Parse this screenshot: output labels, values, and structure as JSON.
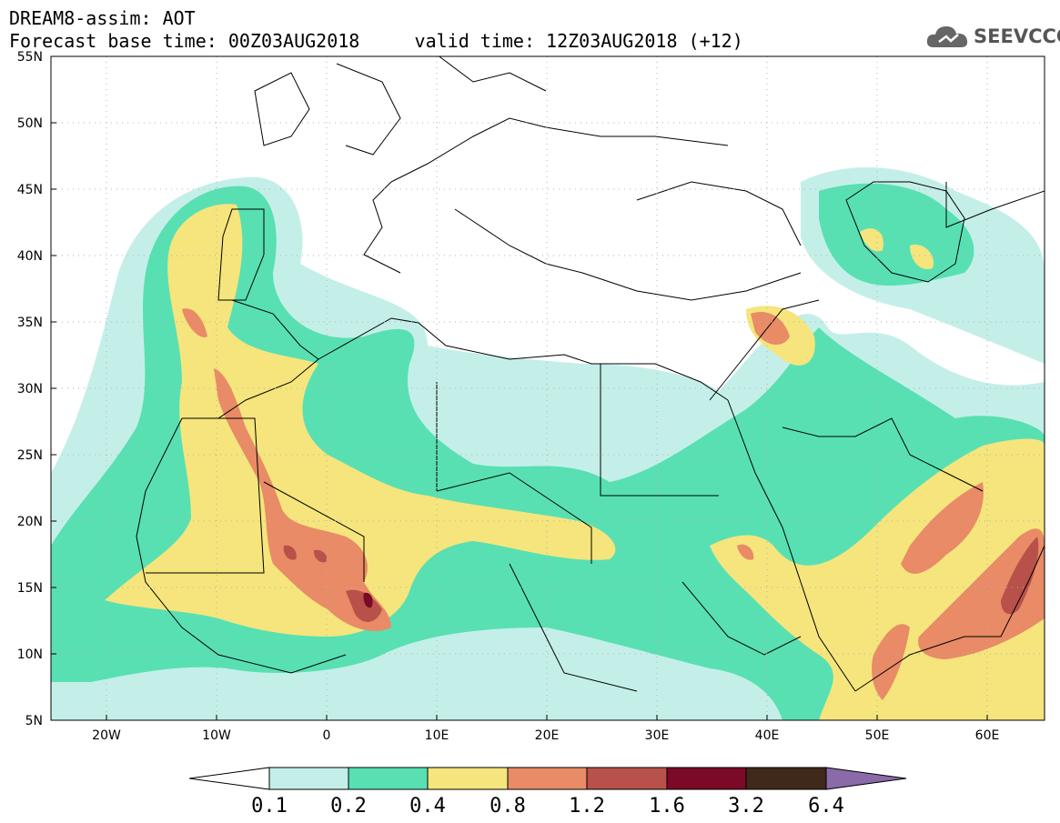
{
  "header": {
    "title": "DREAM8-assim: AOT",
    "base_label": "Forecast base time: 00Z03AUG2018",
    "valid_label": "valid time: 12Z03AUG2018 (+12)"
  },
  "logo": {
    "text": "SEEVCCC",
    "icon": "cloud-icon"
  },
  "map": {
    "lat_labels": [
      "55N",
      "50N",
      "45N",
      "40N",
      "35N",
      "30N",
      "25N",
      "20N",
      "15N",
      "10N",
      "5N"
    ],
    "lon_labels": [
      "20W",
      "10W",
      "0",
      "10E",
      "20E",
      "30E",
      "40E",
      "50E",
      "60E"
    ],
    "lon_range": [
      -25,
      65
    ],
    "lat_range": [
      5,
      55
    ],
    "grid": "dotted"
  },
  "colorbar": {
    "labels": [
      "0.1",
      "0.2",
      "0.4",
      "0.8",
      "1.2",
      "1.6",
      "3.2",
      "6.4"
    ],
    "colors": [
      "#ffffff",
      "#c4efe9",
      "#58e0b3",
      "#f5e57c",
      "#e88b66",
      "#b8514a",
      "#7a0a25",
      "#40281a",
      "#8a6aa8"
    ]
  }
}
